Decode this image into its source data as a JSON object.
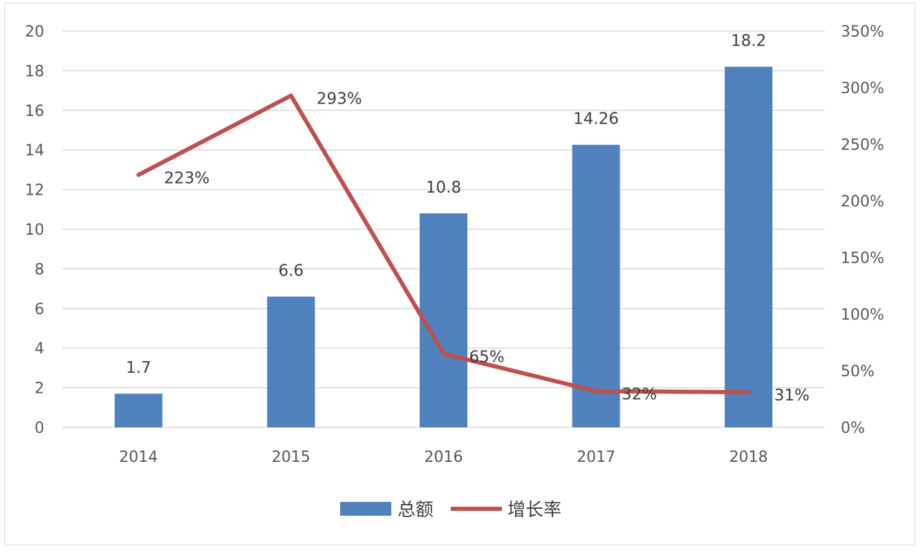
{
  "chart_data": {
    "type": "bar+line",
    "categories": [
      "2014",
      "2015",
      "2016",
      "2017",
      "2018"
    ],
    "series": [
      {
        "name": "总额",
        "type": "bar",
        "axis": "left",
        "values": [
          1.7,
          6.6,
          10.8,
          14.26,
          18.2
        ],
        "labels": [
          "1.7",
          "6.6",
          "10.8",
          "14.26",
          "18.2"
        ],
        "color": "#4f81bd"
      },
      {
        "name": "增长率",
        "type": "line",
        "axis": "right",
        "values": [
          223,
          293,
          65,
          32,
          31
        ],
        "labels": [
          "223%",
          "293%",
          "65%",
          "32%",
          "31%"
        ],
        "color": "#c0504d"
      }
    ],
    "y_left": {
      "min": 0,
      "max": 20,
      "ticks": [
        "0",
        "2",
        "4",
        "6",
        "8",
        "10",
        "12",
        "14",
        "16",
        "18",
        "20"
      ]
    },
    "y_right": {
      "min": 0,
      "max": 350,
      "ticks": [
        "0%",
        "50%",
        "100%",
        "150%",
        "200%",
        "250%",
        "300%",
        "350%"
      ]
    },
    "grid": true,
    "legend": "bottom-center",
    "gridline_color": "#d9d9d9",
    "axis_text_color": "#595959"
  }
}
